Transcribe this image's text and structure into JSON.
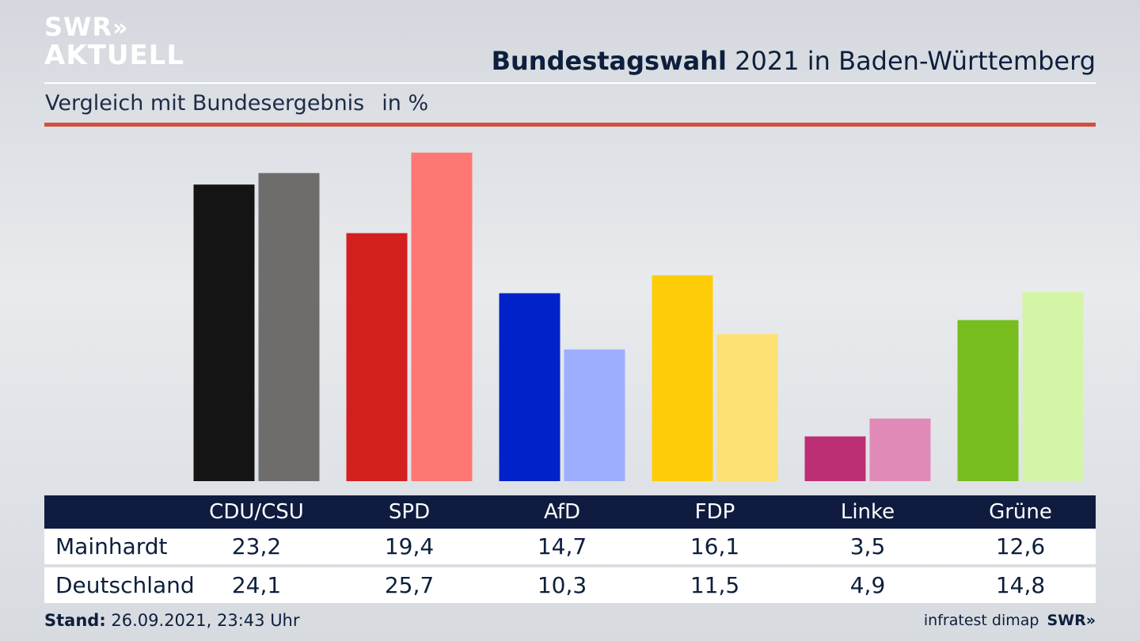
{
  "brand": {
    "line1": "SWR",
    "arrows": "»",
    "line2": "AKTUELL"
  },
  "header": {
    "title_bold": "Bundestagswahl",
    "title_rest": "2021 in Baden-Württemberg",
    "subtitle": "Vergleich mit Bundesergebnis",
    "unit": "in %"
  },
  "chart_data": {
    "type": "bar",
    "categories": [
      "CDU/CSU",
      "SPD",
      "AfD",
      "FDP",
      "Linke",
      "Grüne"
    ],
    "series": [
      {
        "name": "Mainhardt",
        "values": [
          23.2,
          19.4,
          14.7,
          16.1,
          3.5,
          12.6
        ]
      },
      {
        "name": "Deutschland",
        "values": [
          24.1,
          25.7,
          10.3,
          11.5,
          4.9,
          14.8
        ]
      }
    ],
    "colors": {
      "Mainhardt": [
        "#141414",
        "#d41f1f",
        "#0022c8",
        "#ffcc0a",
        "#bd2f74",
        "#78bd1e"
      ],
      "Deutschland": [
        "#6f6d6b",
        "#ff7772",
        "#9eaeff",
        "#fde073",
        "#e08ab8",
        "#d4f5a8"
      ]
    },
    "ylim": [
      0,
      26
    ],
    "grid": false
  },
  "footer": {
    "stand_label": "Stand:",
    "stand_value": "26.09.2021, 23:43 Uhr",
    "source": "infratest dimap",
    "logo": "SWR»"
  }
}
